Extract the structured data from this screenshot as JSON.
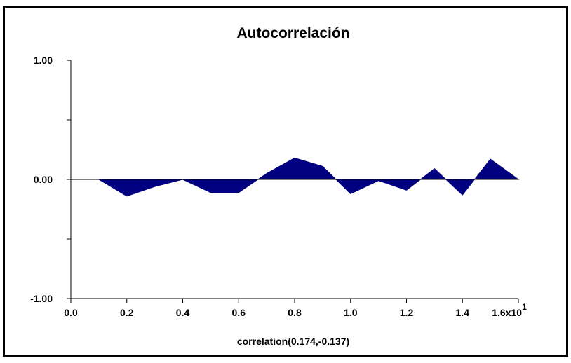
{
  "chart_data": {
    "type": "area",
    "title": "Autocorrelación",
    "x_label": "correlation(0.174,-0.137)",
    "x_scale_label": "x10",
    "x_scale_exponent": "1",
    "x": [
      0.1,
      0.2,
      0.3,
      0.4,
      0.5,
      0.6,
      0.7,
      0.8,
      0.9,
      1.0,
      1.1,
      1.2,
      1.3,
      1.4,
      1.5,
      1.6
    ],
    "series": [
      {
        "color": "#000080",
        "values": [
          0,
          -0.14,
          -0.06,
          0,
          -0.11,
          -0.11,
          0.05,
          0.18,
          0.11,
          -0.12,
          -0.01,
          -0.09,
          0.09,
          -0.13,
          0.17,
          0
        ]
      }
    ],
    "xlim": [
      0,
      1.6
    ],
    "xticks": [
      {
        "value": 0,
        "label": "0.0"
      },
      0.2,
      0.4,
      0.6,
      0.8,
      {
        "value": 1,
        "label": "1.0"
      },
      1.2,
      1.4,
      1.6
    ],
    "ylim": [
      -1,
      1
    ],
    "yticks": [
      {
        "value": -1,
        "label": "-1.00"
      },
      {
        "value": 0,
        "label": "0.00"
      },
      {
        "value": 1,
        "label": "1.00"
      }
    ],
    "yminor_ticks": [
      -0.5,
      0.5
    ]
  }
}
